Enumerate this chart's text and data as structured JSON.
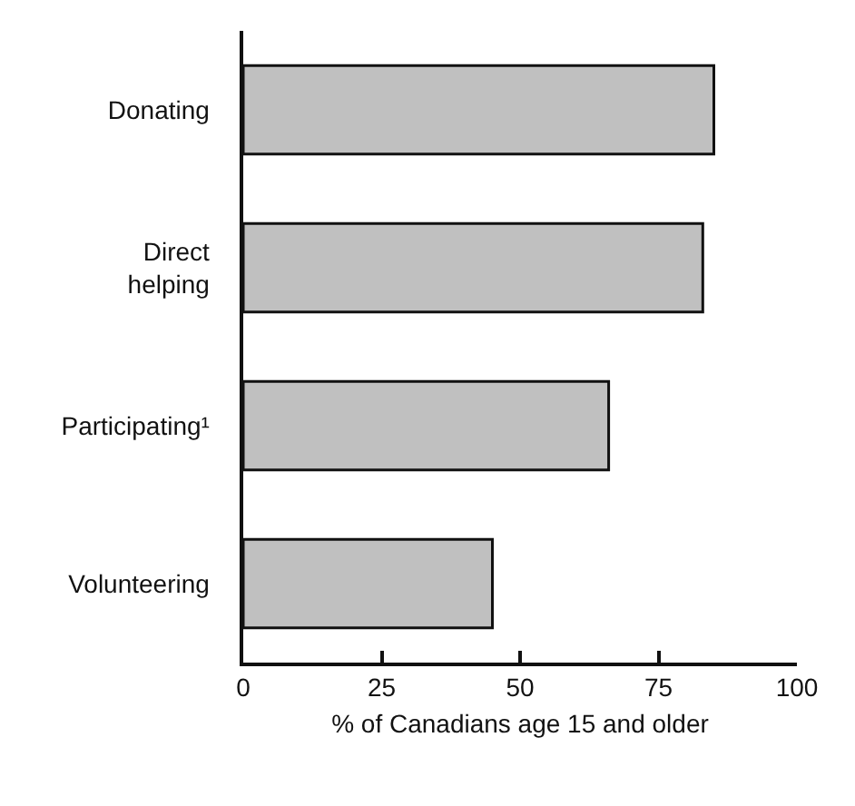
{
  "chart_data": {
    "type": "bar",
    "orientation": "horizontal",
    "xlabel": "% of Canadians age 15 and older",
    "categories": [
      "Donating",
      "Direct helping",
      "Participating¹",
      "Volunteering"
    ],
    "values": [
      85,
      83,
      66,
      45
    ],
    "color": "#c0c0c0",
    "xlim": [
      0,
      100
    ],
    "xticks": [
      0,
      25,
      50,
      75,
      100
    ],
    "grid": false,
    "legend": false
  }
}
